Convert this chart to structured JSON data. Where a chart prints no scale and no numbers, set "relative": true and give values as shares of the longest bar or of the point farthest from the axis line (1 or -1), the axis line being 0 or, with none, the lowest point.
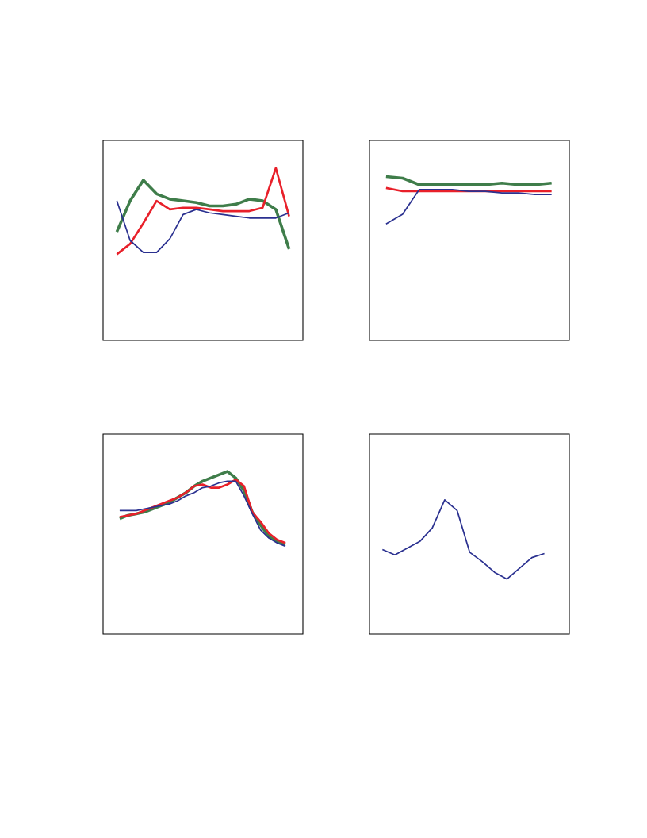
{
  "chart_data": [
    {
      "type": "line",
      "relative": true,
      "categories": [
        null,
        null,
        null,
        null,
        null,
        null,
        null,
        null,
        null,
        null,
        null,
        null,
        null,
        null
      ],
      "series": [
        {
          "color": "#3f7d4a",
          "values": [
            0.63,
            0.81,
            0.93,
            0.85,
            0.82,
            0.81,
            0.8,
            0.78,
            0.78,
            0.79,
            0.82,
            0.81,
            0.76,
            0.53
          ]
        },
        {
          "color": "#e8202a",
          "values": [
            0.5,
            0.56,
            0.68,
            0.81,
            0.76,
            0.77,
            0.77,
            0.76,
            0.75,
            0.75,
            0.75,
            0.77,
            1.0,
            0.72
          ]
        },
        {
          "color": "#2b3190",
          "values": [
            0.81,
            0.58,
            0.51,
            0.51,
            0.59,
            0.73,
            0.76,
            0.74,
            0.73,
            0.72,
            0.71,
            0.71,
            0.71,
            0.74
          ]
        }
      ]
    },
    {
      "type": "line",
      "relative": true,
      "categories": [
        null,
        null,
        null,
        null,
        null,
        null,
        null,
        null,
        null,
        null,
        null
      ],
      "series": [
        {
          "color": "#3f7d4a",
          "values": [
            1.0,
            0.99,
            0.95,
            0.95,
            0.95,
            0.95,
            0.95,
            0.96,
            0.95,
            0.95,
            0.96
          ]
        },
        {
          "color": "#e8202a",
          "values": [
            0.93,
            0.91,
            0.91,
            0.91,
            0.91,
            0.91,
            0.91,
            0.91,
            0.91,
            0.91,
            0.91
          ]
        },
        {
          "color": "#2b3190",
          "values": [
            0.71,
            0.77,
            0.92,
            0.92,
            0.92,
            0.91,
            0.91,
            0.9,
            0.9,
            0.89,
            0.89
          ]
        }
      ]
    },
    {
      "type": "line",
      "relative": true,
      "categories": [
        null,
        null,
        null,
        null,
        null,
        null,
        null,
        null,
        null,
        null,
        null,
        null,
        null,
        null,
        null,
        null,
        null,
        null,
        null,
        null,
        null
      ],
      "series": [
        {
          "color": "#3f7d4a",
          "values": [
            0.71,
            0.73,
            0.74,
            0.75,
            0.77,
            0.79,
            0.81,
            0.84,
            0.87,
            0.91,
            0.94,
            0.96,
            0.98,
            1.0,
            0.96,
            0.88,
            0.75,
            0.67,
            0.6,
            0.57,
            0.55
          ]
        },
        {
          "color": "#e8202a",
          "values": [
            0.72,
            0.73,
            0.74,
            0.76,
            0.78,
            0.8,
            0.82,
            0.84,
            0.87,
            0.91,
            0.92,
            0.9,
            0.9,
            0.92,
            0.95,
            0.91,
            0.75,
            0.69,
            0.62,
            0.58,
            0.56
          ]
        },
        {
          "color": "#2b3190",
          "values": [
            0.76,
            0.76,
            0.76,
            0.77,
            0.78,
            0.79,
            0.8,
            0.82,
            0.85,
            0.87,
            0.9,
            0.91,
            0.93,
            0.94,
            0.94,
            0.85,
            0.74,
            0.64,
            0.59,
            0.56,
            0.54
          ]
        }
      ]
    },
    {
      "type": "line",
      "relative": true,
      "categories": [
        null,
        null,
        null,
        null,
        null,
        null,
        null,
        null,
        null,
        null,
        null,
        null,
        null,
        null
      ],
      "series": [
        {
          "color": "#2b3190",
          "values": [
            0.63,
            0.59,
            0.64,
            0.69,
            0.79,
            1.0,
            0.92,
            0.61,
            0.54,
            0.46,
            0.41,
            0.49,
            0.57,
            0.6
          ]
        }
      ]
    }
  ]
}
